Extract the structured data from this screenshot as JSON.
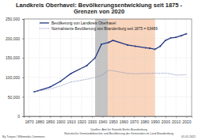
{
  "chart_data": {
    "type": "line",
    "title": "Landkreis Oberhavel: Bevölkerungsentwicklung seit 1875 - Grenzen von 2020",
    "x": [
      1875,
      1890,
      1900,
      1910,
      1925,
      1933,
      1939,
      1946,
      1950,
      1964,
      1971,
      1981,
      1985,
      1990,
      1995,
      2000,
      2005,
      2010,
      2015,
      2020
    ],
    "series": [
      {
        "name": "Bevölkerung von Landkreis Oberhavel",
        "color": "#1f3580",
        "marker": "circle",
        "line_style": "solid",
        "values": [
          63000,
          75000,
          90000,
          110000,
          130000,
          150000,
          185000,
          190000,
          195000,
          183000,
          180000,
          176000,
          175000,
          172000,
          180000,
          195000,
          201000,
          203000,
          207000,
          212000
        ]
      },
      {
        "name": "Normalisierte Bevölkerung von Brandenburg seit 1875 = 63489",
        "color": "#7a87b8",
        "marker": "none",
        "line_style": "dotted",
        "values": [
          63000,
          70000,
          78000,
          88000,
          95000,
          100000,
          105000,
          118000,
          117000,
          110000,
          109000,
          110000,
          110000,
          111000,
          110000,
          111000,
          109000,
          106000,
          106000,
          107000
        ]
      }
    ],
    "shaded_periods": [
      {
        "start": 1933,
        "end": 1945,
        "color": "#b5b5b5"
      },
      {
        "start": 1945,
        "end": 1990,
        "color": "#f8cbad"
      }
    ],
    "xlim": [
      1865,
      2025
    ],
    "xticks": [
      1870,
      1880,
      1890,
      1900,
      1910,
      1920,
      1930,
      1940,
      1950,
      1960,
      1970,
      1980,
      1990,
      2000,
      2010,
      2020
    ],
    "ylim": [
      0,
      250000
    ],
    "yticks": [
      0,
      {
        "value": 50000,
        "label": "50,000"
      },
      {
        "value": 100000,
        "label": "100,000"
      },
      {
        "value": 150000,
        "label": "150,000"
      },
      {
        "value": 200000,
        "label": "200,000"
      },
      {
        "value": 250000,
        "label": "250,000"
      }
    ],
    "grid": true,
    "legend": "upper left",
    "annotations": [
      "Quellen: Amt für Statistik Berlin-Brandenburg",
      "Statistische Gemeindeberichte und Bevölkerung der Gemeinden im Land Brandenburg",
      "By Tuxyso / Wikimedia Commons",
      "01.01.2021"
    ]
  }
}
